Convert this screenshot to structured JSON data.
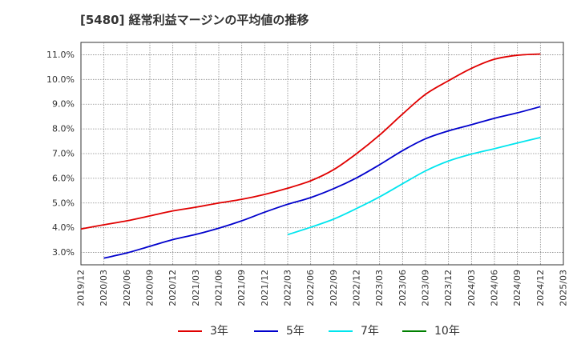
{
  "chart_data": {
    "type": "line",
    "title": "[5480]  経常利益マージンの平均値の推移",
    "xlabel": "",
    "ylabel": "",
    "x_ticks": [
      "2019/12",
      "2020/03",
      "2020/06",
      "2020/09",
      "2020/12",
      "2021/03",
      "2021/06",
      "2021/09",
      "2021/12",
      "2022/03",
      "2022/06",
      "2022/09",
      "2022/12",
      "2023/03",
      "2023/06",
      "2023/09",
      "2023/12",
      "2024/03",
      "2024/06",
      "2024/09",
      "2024/12",
      "2025/03"
    ],
    "y_ticks": [
      "3.0%",
      "4.0%",
      "5.0%",
      "6.0%",
      "7.0%",
      "8.0%",
      "9.0%",
      "10.0%",
      "11.0%"
    ],
    "ylim": [
      2.5,
      11.5
    ],
    "grid": true,
    "legend_position": "bottom",
    "series": [
      {
        "name": "3年",
        "color": "#e00000",
        "x": [
          "2019/12",
          "2020/03",
          "2020/06",
          "2020/09",
          "2020/12",
          "2021/03",
          "2021/06",
          "2021/09",
          "2021/12",
          "2022/03",
          "2022/06",
          "2022/09",
          "2022/12",
          "2023/03",
          "2023/06",
          "2023/09",
          "2023/12",
          "2024/03",
          "2024/06",
          "2024/09",
          "2024/12"
        ],
        "values": [
          3.95,
          4.12,
          4.28,
          4.48,
          4.68,
          4.83,
          5.0,
          5.15,
          5.35,
          5.6,
          5.9,
          6.35,
          7.0,
          7.75,
          8.6,
          9.4,
          9.95,
          10.45,
          10.82,
          10.98,
          11.03
        ]
      },
      {
        "name": "5年",
        "color": "#0000cc",
        "x": [
          "2020/03",
          "2020/06",
          "2020/09",
          "2020/12",
          "2021/03",
          "2021/06",
          "2021/09",
          "2021/12",
          "2022/03",
          "2022/06",
          "2022/09",
          "2022/12",
          "2023/03",
          "2023/06",
          "2023/09",
          "2023/12",
          "2024/03",
          "2024/06",
          "2024/09",
          "2024/12"
        ],
        "values": [
          2.77,
          2.98,
          3.25,
          3.52,
          3.73,
          3.98,
          4.28,
          4.63,
          4.95,
          5.22,
          5.58,
          6.02,
          6.55,
          7.12,
          7.6,
          7.92,
          8.17,
          8.43,
          8.65,
          8.9
        ]
      },
      {
        "name": "7年",
        "color": "#00e5ee",
        "x": [
          "2022/03",
          "2022/06",
          "2022/09",
          "2022/12",
          "2023/03",
          "2023/06",
          "2023/09",
          "2023/12",
          "2024/03",
          "2024/06",
          "2024/09",
          "2024/12"
        ],
        "values": [
          3.72,
          4.02,
          4.35,
          4.78,
          5.25,
          5.78,
          6.3,
          6.7,
          6.98,
          7.2,
          7.43,
          7.65
        ]
      },
      {
        "name": "10年",
        "color": "#008000",
        "x": [],
        "values": []
      }
    ]
  }
}
